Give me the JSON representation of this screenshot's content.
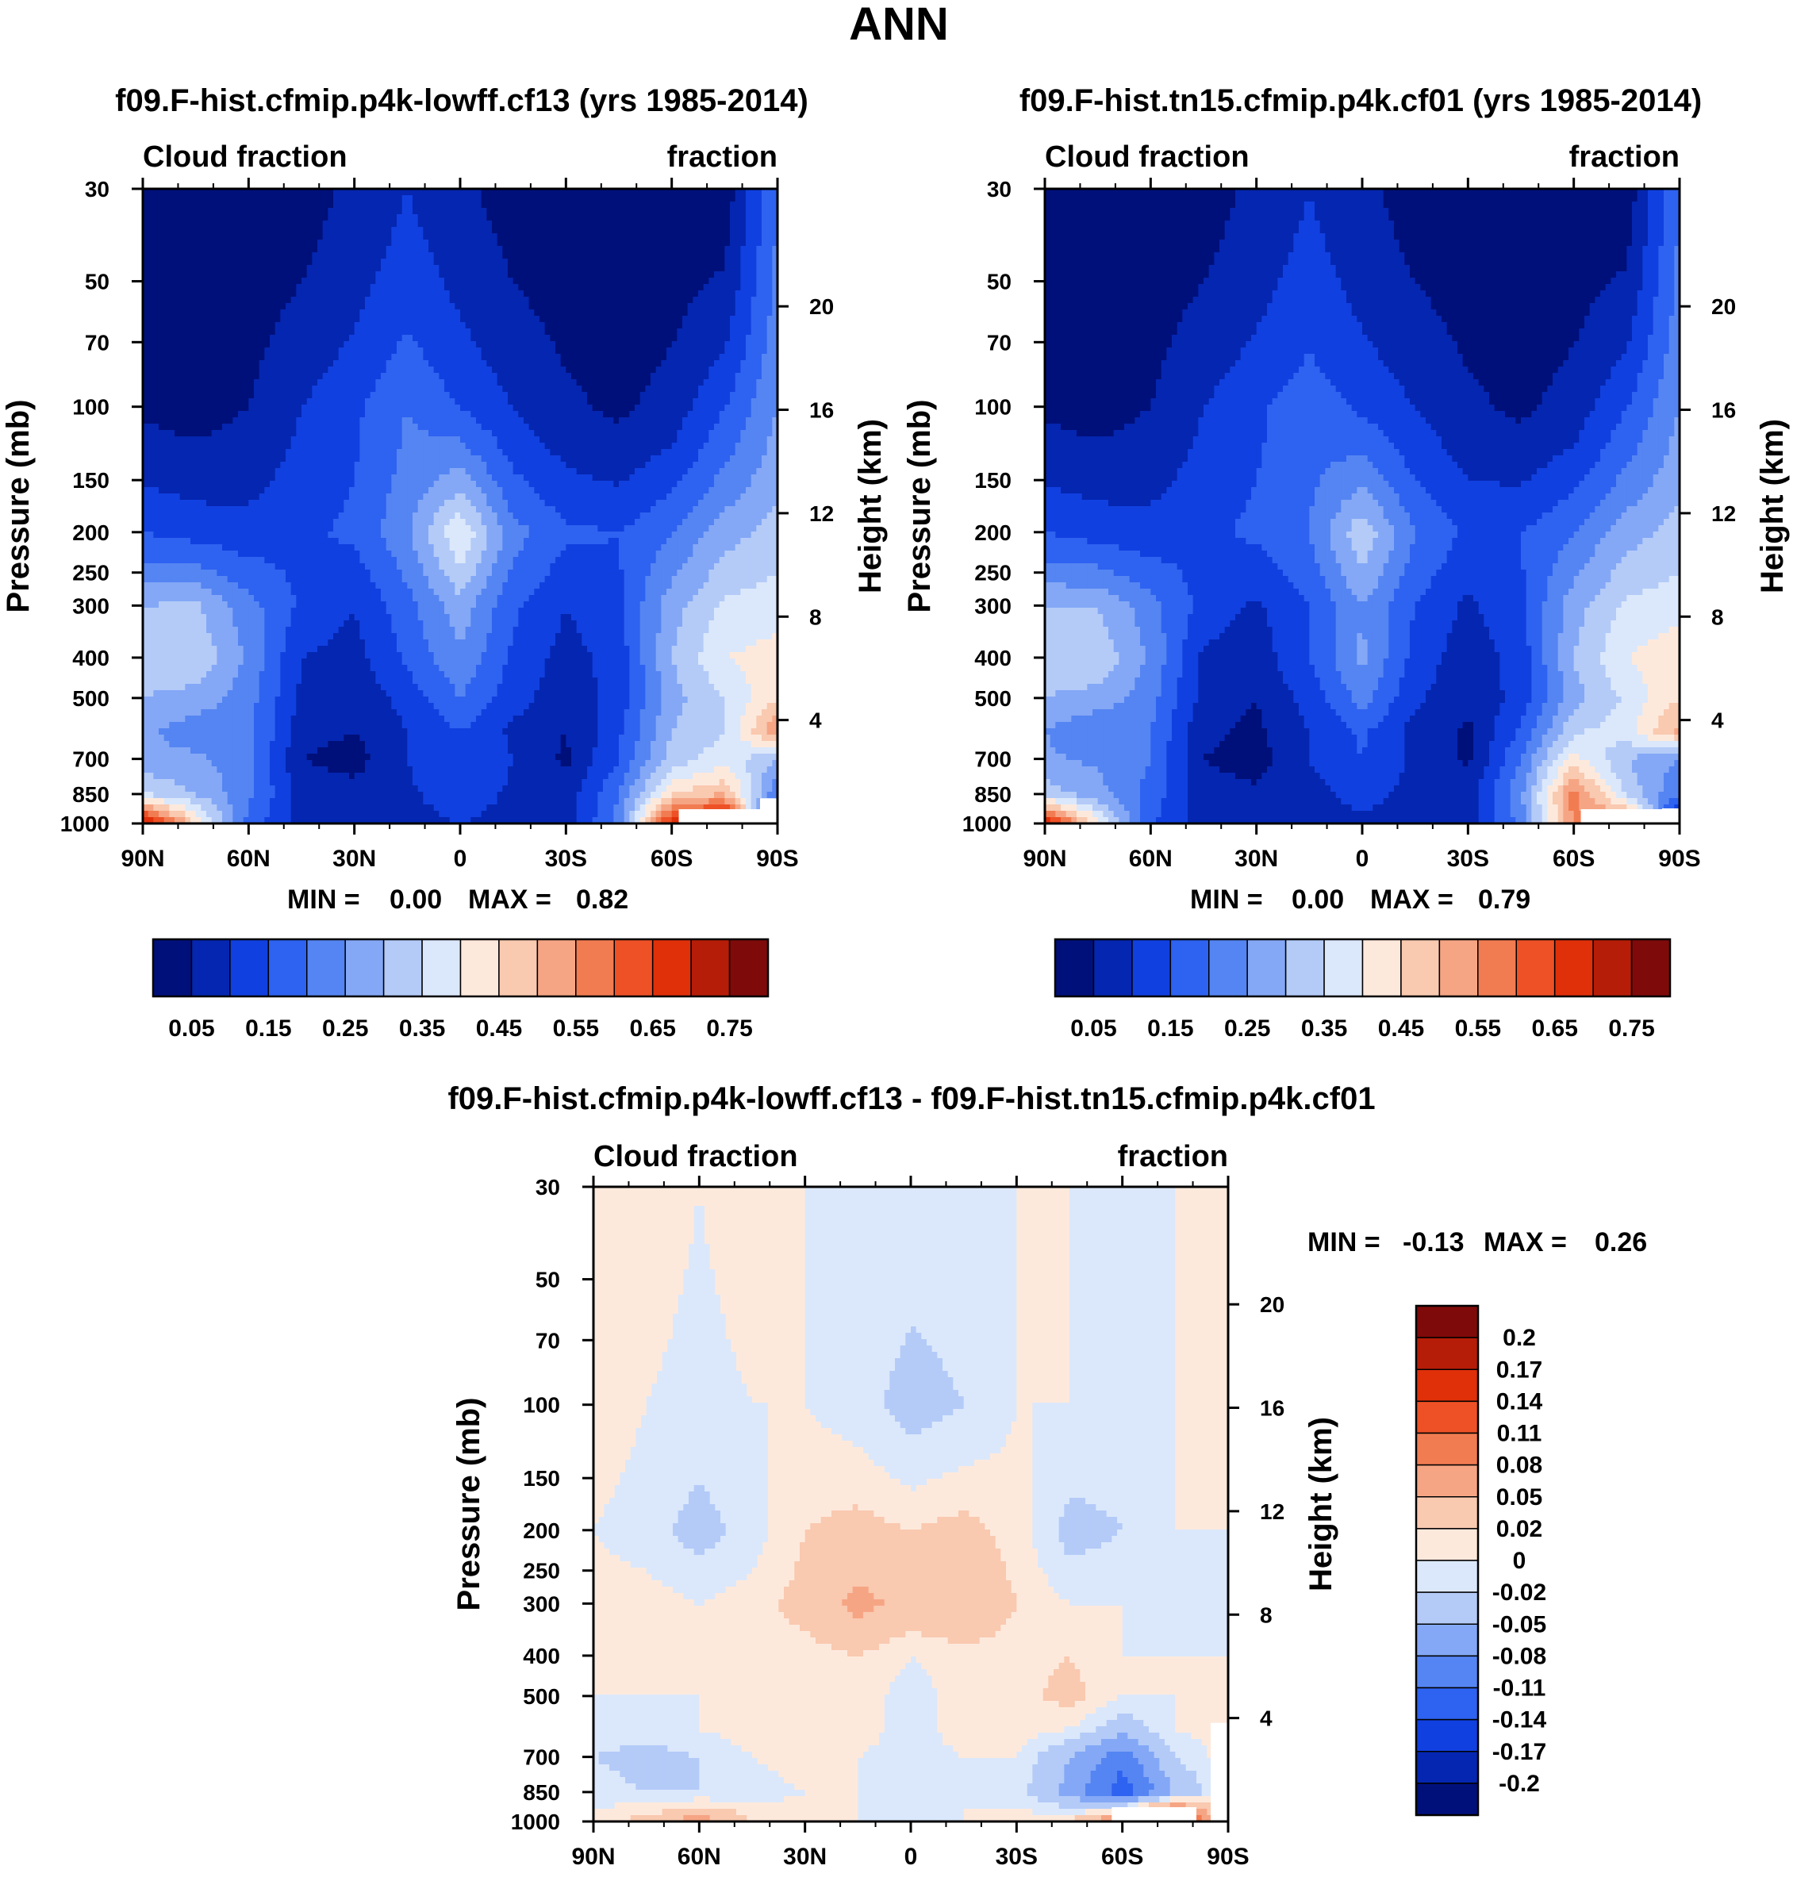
{
  "figure": {
    "title": "ANN",
    "colors": {
      "abs_palette": [
        "#00107a",
        "#0526b0",
        "#1140e0",
        "#2e62f0",
        "#5585f2",
        "#84a8f6",
        "#b4cbf8",
        "#dbe8fb",
        "#fde9dc",
        "#f9c9b0",
        "#f6a584",
        "#f27c52",
        "#ee5126",
        "#e0300a",
        "#b61d08",
        "#7f0a0a"
      ],
      "diff_palette": [
        "#00107a",
        "#0526b0",
        "#1140e0",
        "#2e62f0",
        "#5585f2",
        "#84a8f6",
        "#b4cbf8",
        "#dbe8fb",
        "#fde9dc",
        "#f9c9b0",
        "#f6a584",
        "#f27c52",
        "#ee5126",
        "#e0300a",
        "#b61d08",
        "#7f0a0a"
      ]
    }
  },
  "chart_data": [
    {
      "type": "heatmap",
      "panel": "top-left",
      "title": "f09.F-hist.cfmip.p4k-lowff.cf13 (yrs 1985-2014)",
      "left_string": "Cloud fraction",
      "right_string": "fraction",
      "ylabel": "Pressure (mb)",
      "y2label": "Height (km)",
      "x_ticks": [
        "90N",
        "60N",
        "30N",
        "0",
        "30S",
        "60S",
        "90S"
      ],
      "x_range": [
        90,
        -90
      ],
      "y_ticks": [
        "30",
        "50",
        "70",
        "100",
        "150",
        "200",
        "250",
        "300",
        "400",
        "500",
        "700",
        "850",
        "1000"
      ],
      "y_range": [
        30,
        1000
      ],
      "y2_ticks": [
        "20",
        "16",
        "12",
        "8",
        "4"
      ],
      "stats": {
        "min_label": "MIN =",
        "min": "0.00",
        "max_label": "MAX =",
        "max": "0.82"
      },
      "colorbar": {
        "labels": [
          "0.05",
          "0.15",
          "0.25",
          "0.35",
          "0.45",
          "0.55",
          "0.65",
          "0.75"
        ],
        "orientation": "horizontal"
      },
      "approx_field": {
        "lat": [
          90,
          75,
          60,
          45,
          30,
          15,
          0,
          -15,
          -30,
          -45,
          -60,
          -75,
          -90
        ],
        "pressure": [
          30,
          100,
          200,
          300,
          400,
          500,
          600,
          700,
          850,
          1000
        ],
        "values": [
          [
            0.02,
            0.02,
            0.02,
            0.03,
            0.06,
            0.1,
            0.06,
            0.03,
            0.02,
            0.02,
            0.02,
            0.02,
            0.2
          ],
          [
            0.04,
            0.03,
            0.05,
            0.1,
            0.14,
            0.2,
            0.15,
            0.1,
            0.06,
            0.04,
            0.07,
            0.15,
            0.25
          ],
          [
            0.15,
            0.13,
            0.12,
            0.14,
            0.16,
            0.24,
            0.4,
            0.22,
            0.16,
            0.15,
            0.2,
            0.28,
            0.32
          ],
          [
            0.3,
            0.31,
            0.22,
            0.14,
            0.1,
            0.18,
            0.28,
            0.16,
            0.1,
            0.14,
            0.28,
            0.36,
            0.38
          ],
          [
            0.33,
            0.34,
            0.24,
            0.1,
            0.08,
            0.16,
            0.24,
            0.14,
            0.08,
            0.12,
            0.3,
            0.4,
            0.42
          ],
          [
            0.3,
            0.28,
            0.22,
            0.09,
            0.06,
            0.12,
            0.2,
            0.12,
            0.07,
            0.12,
            0.28,
            0.35,
            0.45
          ],
          [
            0.26,
            0.22,
            0.22,
            0.07,
            0.05,
            0.1,
            0.15,
            0.09,
            0.05,
            0.14,
            0.3,
            0.35,
            0.55
          ],
          [
            0.27,
            0.26,
            0.22,
            0.05,
            0.03,
            0.1,
            0.15,
            0.1,
            0.04,
            0.15,
            0.32,
            0.38,
            0.3
          ],
          [
            0.35,
            0.3,
            0.21,
            0.08,
            0.07,
            0.09,
            0.13,
            0.09,
            0.07,
            0.2,
            0.45,
            0.5,
            0.2
          ],
          [
            0.75,
            0.45,
            0.18,
            0.08,
            0.07,
            0.08,
            0.1,
            0.08,
            0.07,
            0.22,
            0.7,
            0.8,
            0.0
          ]
        ]
      }
    },
    {
      "type": "heatmap",
      "panel": "top-right",
      "title": "f09.F-hist.tn15.cfmip.p4k.cf01 (yrs 1985-2014)",
      "left_string": "Cloud fraction",
      "right_string": "fraction",
      "ylabel": "Pressure (mb)",
      "y2label": "Height (km)",
      "x_ticks": [
        "90N",
        "60N",
        "30N",
        "0",
        "30S",
        "60S",
        "90S"
      ],
      "x_range": [
        90,
        -90
      ],
      "y_ticks": [
        "30",
        "50",
        "70",
        "100",
        "150",
        "200",
        "250",
        "300",
        "400",
        "500",
        "700",
        "850",
        "1000"
      ],
      "y_range": [
        30,
        1000
      ],
      "y2_ticks": [
        "20",
        "16",
        "12",
        "8",
        "4"
      ],
      "stats": {
        "min_label": "MIN =",
        "min": "0.00",
        "max_label": "MAX =",
        "max": "0.79"
      },
      "colorbar": {
        "labels": [
          "0.05",
          "0.15",
          "0.25",
          "0.35",
          "0.45",
          "0.55",
          "0.65",
          "0.75"
        ],
        "orientation": "horizontal"
      },
      "approx_field": {
        "lat": [
          90,
          75,
          60,
          45,
          30,
          15,
          0,
          -15,
          -30,
          -45,
          -60,
          -75,
          -90
        ],
        "pressure": [
          30,
          100,
          200,
          300,
          400,
          500,
          600,
          700,
          850,
          1000
        ],
        "values": [
          [
            0.02,
            0.02,
            0.02,
            0.03,
            0.06,
            0.1,
            0.06,
            0.03,
            0.02,
            0.02,
            0.02,
            0.02,
            0.2
          ],
          [
            0.04,
            0.03,
            0.05,
            0.1,
            0.14,
            0.18,
            0.14,
            0.1,
            0.06,
            0.04,
            0.07,
            0.15,
            0.25
          ],
          [
            0.15,
            0.13,
            0.12,
            0.14,
            0.16,
            0.2,
            0.34,
            0.2,
            0.14,
            0.15,
            0.2,
            0.28,
            0.32
          ],
          [
            0.3,
            0.3,
            0.22,
            0.13,
            0.09,
            0.15,
            0.25,
            0.15,
            0.09,
            0.14,
            0.28,
            0.36,
            0.38
          ],
          [
            0.33,
            0.34,
            0.24,
            0.09,
            0.07,
            0.15,
            0.26,
            0.13,
            0.07,
            0.12,
            0.3,
            0.4,
            0.44
          ],
          [
            0.3,
            0.28,
            0.22,
            0.08,
            0.05,
            0.12,
            0.22,
            0.11,
            0.06,
            0.12,
            0.28,
            0.36,
            0.45
          ],
          [
            0.25,
            0.2,
            0.2,
            0.06,
            0.04,
            0.1,
            0.16,
            0.08,
            0.04,
            0.16,
            0.34,
            0.38,
            0.52
          ],
          [
            0.26,
            0.24,
            0.2,
            0.05,
            0.03,
            0.1,
            0.15,
            0.09,
            0.04,
            0.2,
            0.42,
            0.3,
            0.25
          ],
          [
            0.33,
            0.27,
            0.18,
            0.07,
            0.06,
            0.08,
            0.12,
            0.08,
            0.07,
            0.24,
            0.58,
            0.34,
            0.2
          ],
          [
            0.72,
            0.42,
            0.16,
            0.07,
            0.06,
            0.07,
            0.09,
            0.07,
            0.07,
            0.22,
            0.55,
            0.6,
            0.0
          ]
        ]
      }
    },
    {
      "type": "heatmap",
      "panel": "bottom",
      "title": "f09.F-hist.cfmip.p4k-lowff.cf13 - f09.F-hist.tn15.cfmip.p4k.cf01",
      "left_string": "Cloud fraction",
      "right_string": "fraction",
      "ylabel": "Pressure (mb)",
      "y2label": "Height (km)",
      "x_ticks": [
        "90N",
        "60N",
        "30N",
        "0",
        "30S",
        "60S",
        "90S"
      ],
      "x_range": [
        90,
        -90
      ],
      "y_ticks": [
        "30",
        "50",
        "70",
        "100",
        "150",
        "200",
        "250",
        "300",
        "400",
        "500",
        "700",
        "850",
        "1000"
      ],
      "y_range": [
        30,
        1000
      ],
      "y2_ticks": [
        "20",
        "16",
        "12",
        "8",
        "4"
      ],
      "stats": {
        "min_label": "MIN =",
        "min": "-0.13",
        "max_label": "MAX =",
        "max": "0.26"
      },
      "colorbar": {
        "labels": [
          "0.2",
          "0.17",
          "0.14",
          "0.11",
          "0.08",
          "0.05",
          "0.02",
          "0",
          "-0.02",
          "-0.05",
          "-0.08",
          "-0.11",
          "-0.14",
          "-0.17",
          "-0.2"
        ],
        "orientation": "vertical"
      },
      "approx_field": {
        "lat": [
          90,
          75,
          60,
          45,
          30,
          15,
          0,
          -15,
          -30,
          -45,
          -60,
          -75,
          -90
        ],
        "pressure": [
          30,
          100,
          200,
          300,
          400,
          500,
          600,
          700,
          850,
          1000
        ],
        "values": [
          [
            0.01,
            0.01,
            0.0,
            0.01,
            0.0,
            -0.01,
            -0.01,
            -0.01,
            0.0,
            0.0,
            0.0,
            0.0,
            0.0
          ],
          [
            0.01,
            0.0,
            -0.01,
            0.0,
            0.0,
            -0.01,
            -0.03,
            -0.02,
            0.0,
            0.0,
            -0.01,
            0.0,
            0.0
          ],
          [
            0.0,
            -0.01,
            -0.03,
            -0.01,
            0.02,
            0.03,
            0.02,
            0.03,
            0.01,
            -0.03,
            -0.02,
            0.0,
            0.0
          ],
          [
            0.01,
            0.01,
            0.0,
            0.01,
            0.03,
            0.06,
            0.04,
            0.05,
            0.02,
            0.0,
            0.0,
            -0.01,
            0.0
          ],
          [
            0.01,
            0.01,
            0.01,
            0.01,
            0.01,
            0.02,
            0.0,
            0.01,
            0.01,
            0.02,
            0.0,
            0.0,
            0.0
          ],
          [
            0.0,
            0.0,
            0.0,
            0.01,
            0.01,
            0.01,
            -0.01,
            0.01,
            0.01,
            0.03,
            0.0,
            0.0,
            0.01
          ],
          [
            -0.01,
            -0.01,
            0.0,
            0.01,
            0.01,
            0.01,
            -0.01,
            0.01,
            0.01,
            0.0,
            -0.04,
            0.0,
            0.01
          ],
          [
            -0.02,
            -0.03,
            -0.02,
            0.0,
            0.01,
            0.0,
            -0.01,
            0.0,
            0.0,
            -0.05,
            -0.1,
            -0.02,
            0.01
          ],
          [
            -0.01,
            -0.02,
            -0.02,
            -0.01,
            0.0,
            0.0,
            -0.01,
            0.0,
            -0.01,
            -0.06,
            -0.13,
            -0.05,
            0.0
          ],
          [
            0.01,
            0.03,
            0.07,
            0.02,
            0.01,
            0.0,
            0.0,
            0.0,
            0.01,
            0.02,
            0.1,
            0.2,
            0.0
          ]
        ]
      }
    }
  ]
}
